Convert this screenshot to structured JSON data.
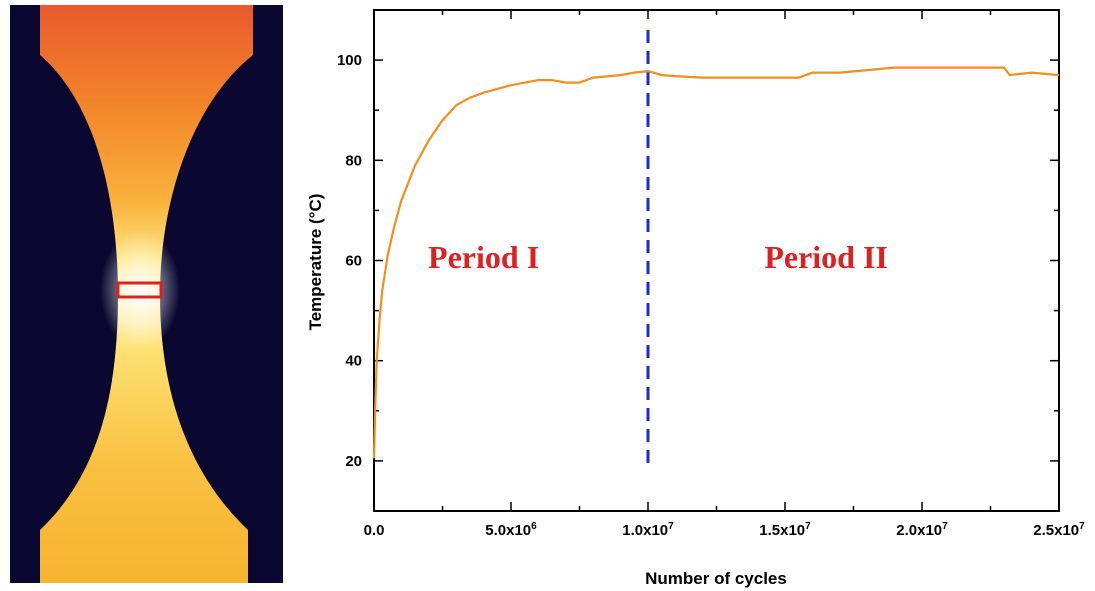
{
  "chart_data": {
    "type": "line",
    "xlabel": "Number of cycles",
    "ylabel": "Temperature (°C)",
    "xlim": [
      0,
      25000000
    ],
    "ylim": [
      10,
      110
    ],
    "x_ticks": [
      {
        "value": 0,
        "label": "0.0",
        "exp": ""
      },
      {
        "value": 5000000,
        "label": "5.0x10",
        "exp": "6"
      },
      {
        "value": 10000000,
        "label": "1.0x10",
        "exp": "7"
      },
      {
        "value": 15000000,
        "label": "1.5x10",
        "exp": "7"
      },
      {
        "value": 20000000,
        "label": "2.0x10",
        "exp": "7"
      },
      {
        "value": 25000000,
        "label": "2.5x10",
        "exp": "7"
      }
    ],
    "y_ticks": [
      20,
      40,
      60,
      80,
      100
    ],
    "series": [
      {
        "color": "#f0901a",
        "x": [
          0,
          50000,
          100000,
          200000,
          300000,
          500000,
          750000,
          1000000,
          1500000,
          2000000,
          2500000,
          3000000,
          3500000,
          4000000,
          5000000,
          6000000,
          6500000,
          7000000,
          7500000,
          8000000,
          9000000,
          9500000,
          10000000,
          10500000,
          11000000,
          12000000,
          13000000,
          14000000,
          15000000,
          15500000,
          16000000,
          17000000,
          18000000,
          19000000,
          20000000,
          21000000,
          22000000,
          23000000,
          23200000,
          24000000,
          25000000
        ],
        "y": [
          20.5,
          32,
          40,
          48,
          54,
          61,
          67,
          72,
          79,
          84,
          88,
          91,
          92.5,
          93.5,
          95,
          96,
          96,
          95.5,
          95.5,
          96.5,
          97,
          97.5,
          97.8,
          97,
          96.8,
          96.5,
          96.5,
          96.5,
          96.5,
          96.5,
          97.5,
          97.5,
          98,
          98.5,
          98.5,
          98.5,
          98.5,
          98.5,
          97,
          97.5,
          97
        ]
      }
    ],
    "divider": {
      "x": 10000000,
      "y_range": [
        19,
        106
      ],
      "color": "#1a2ccc"
    },
    "annotations": [
      {
        "text": "Period I",
        "x": 4000000,
        "y": 58.5
      },
      {
        "text": "Period II",
        "x": 16500000,
        "y": 58.5
      }
    ]
  },
  "thermal_image": {
    "background": "#0a0830",
    "gradient": [
      "#e85a2c",
      "#f3862a",
      "#f9b23c",
      "#fde47e",
      "#fff6d0",
      "#fde070",
      "#f7b430"
    ],
    "roi_color": "#e02020"
  }
}
